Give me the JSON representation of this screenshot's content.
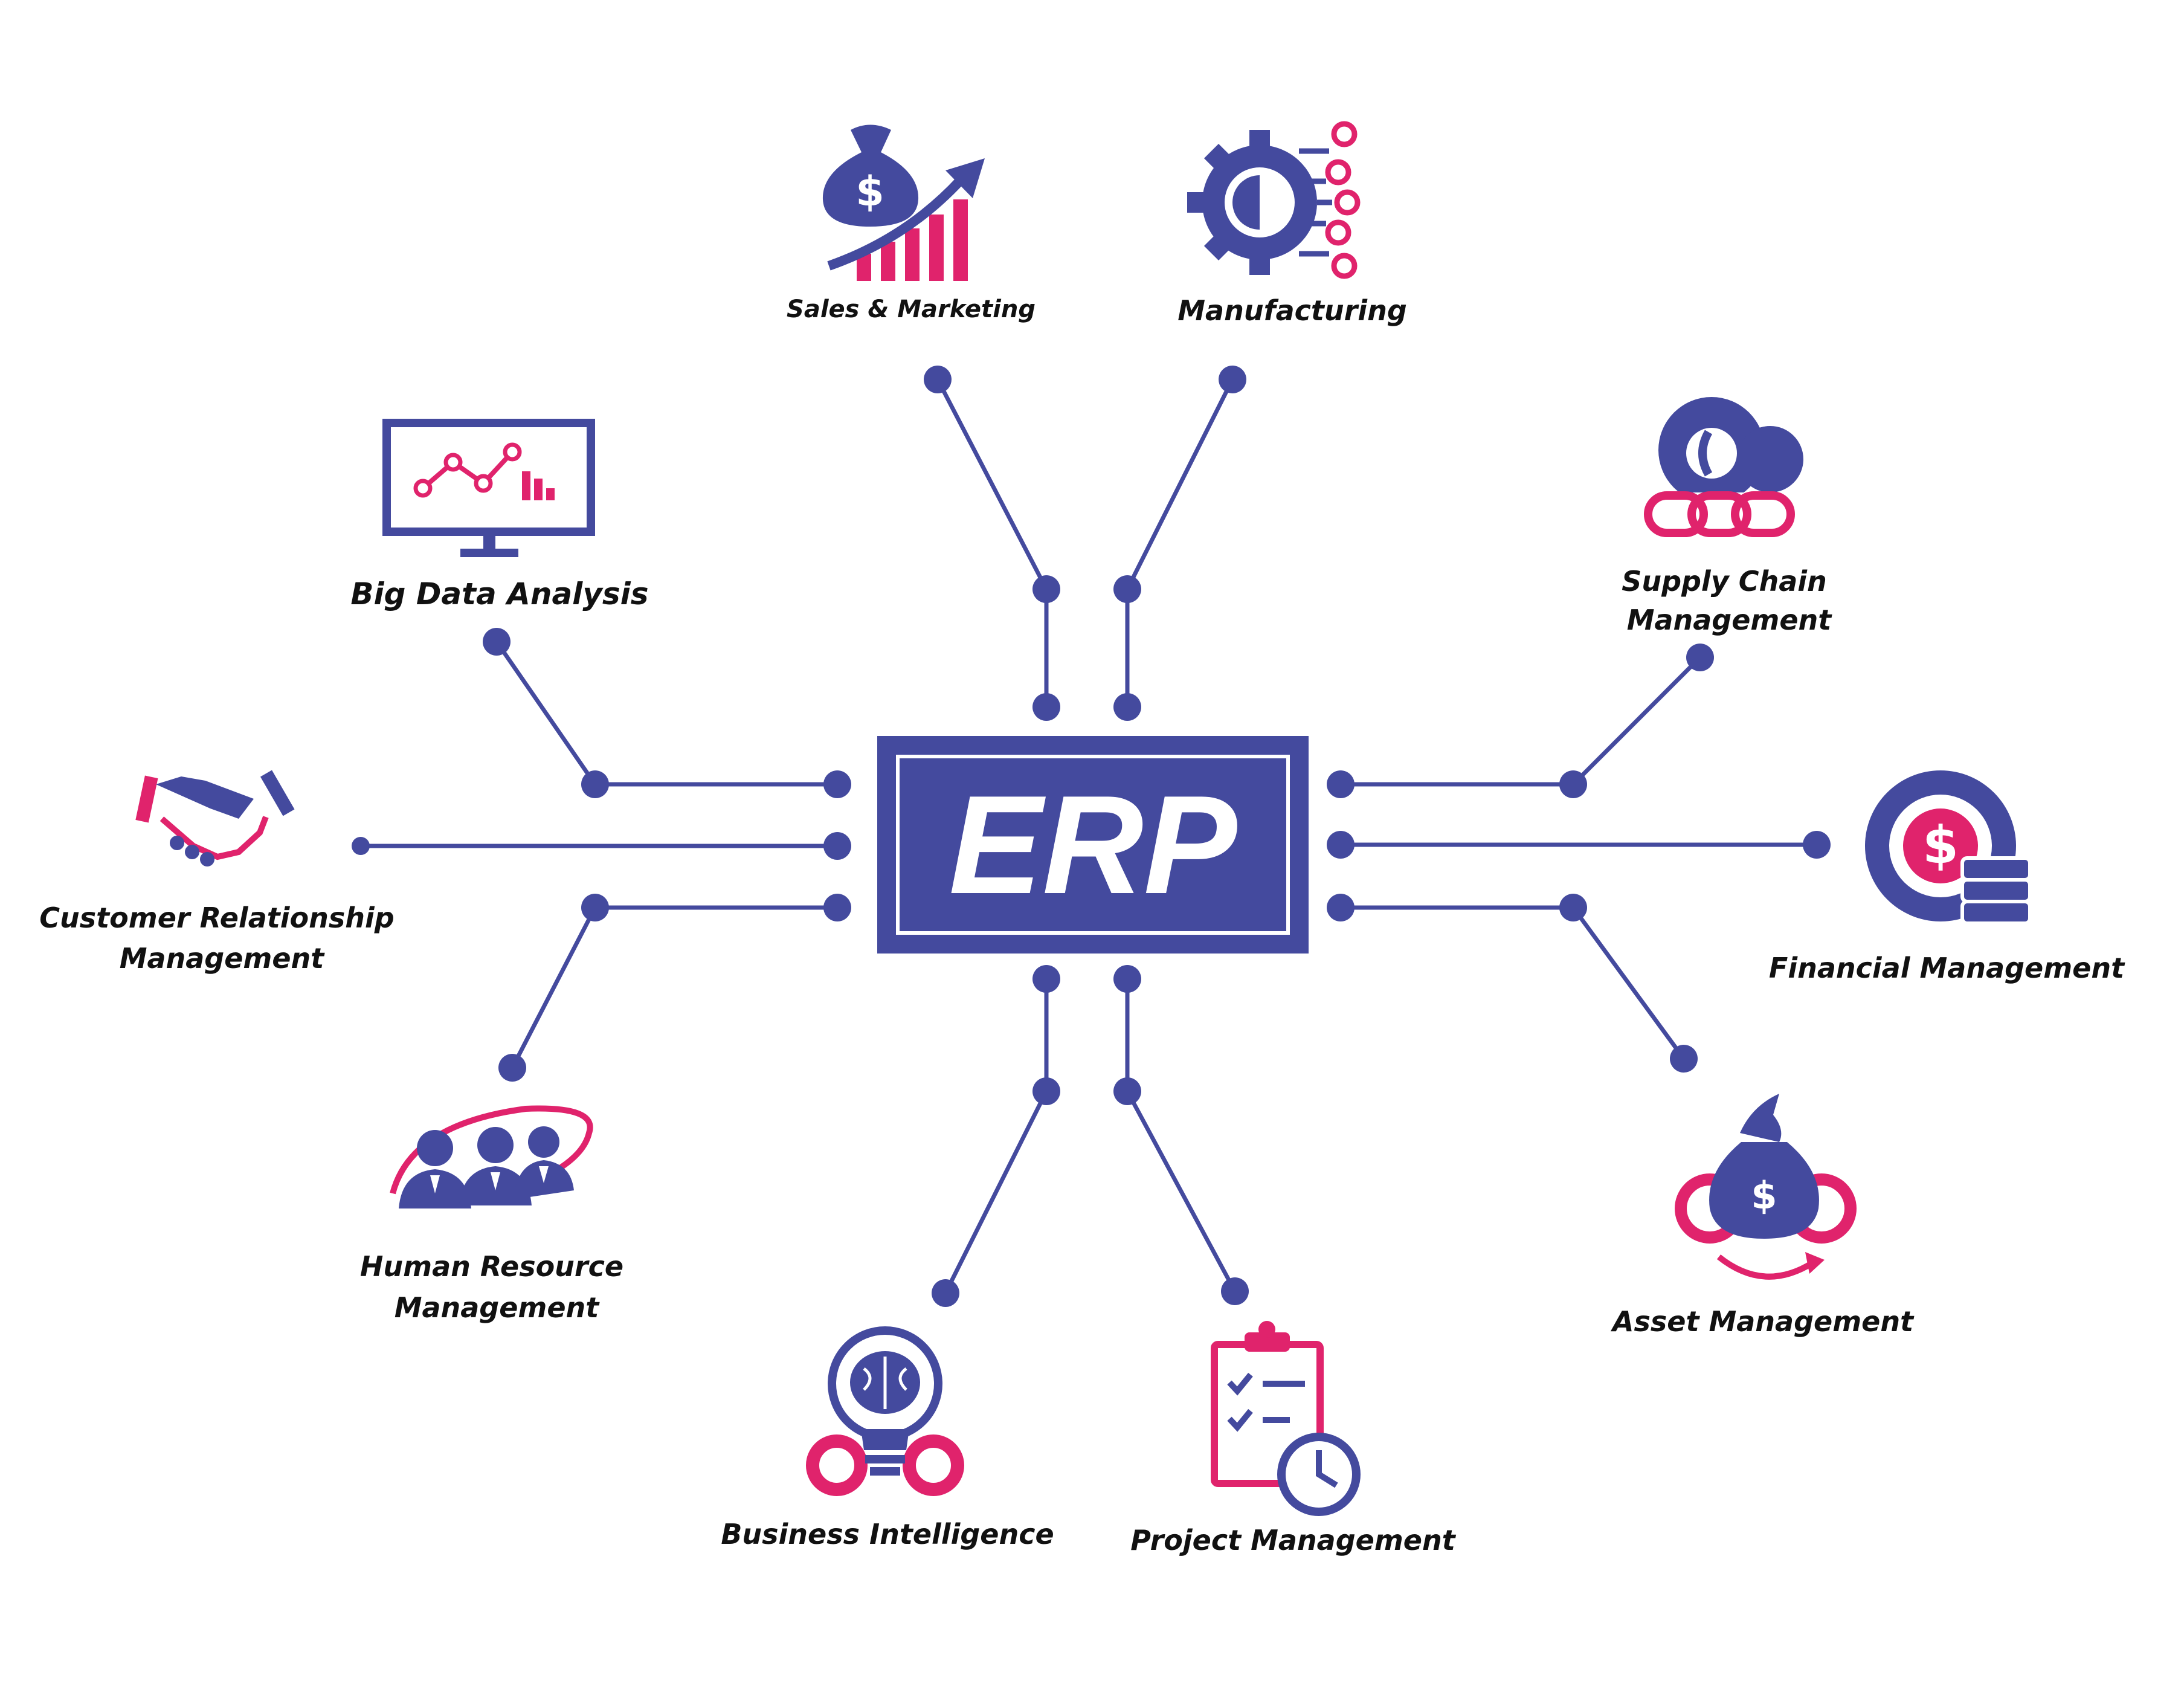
{
  "center": {
    "label": "ERP"
  },
  "colors": {
    "primary": "#444a9e",
    "accent": "#e0236c",
    "text": "#111111",
    "center_text": "#ffffff"
  },
  "modules": [
    {
      "id": "sales",
      "lines": [
        "Sales & Marketing"
      ],
      "icon": "money-bag-growth-chart-icon"
    },
    {
      "id": "manufacturing",
      "lines": [
        "Manufacturing"
      ],
      "icon": "gear-circuit-icon"
    },
    {
      "id": "supply",
      "lines": [
        "Supply Chain",
        "Management"
      ],
      "icon": "gears-chain-icon"
    },
    {
      "id": "financial",
      "lines": [
        "Financial Management"
      ],
      "icon": "dollar-gear-coins-icon"
    },
    {
      "id": "asset",
      "lines": [
        "Asset Management"
      ],
      "icon": "money-bag-gears-icon"
    },
    {
      "id": "project",
      "lines": [
        "Project Management"
      ],
      "icon": "clipboard-clock-icon"
    },
    {
      "id": "bi",
      "lines": [
        "Business Intelligence"
      ],
      "icon": "brain-bulb-gears-icon"
    },
    {
      "id": "hr",
      "lines": [
        "Human Resource",
        "Management"
      ],
      "icon": "team-people-icon"
    },
    {
      "id": "crm",
      "lines": [
        "Customer Relationship",
        "Management"
      ],
      "icon": "handshake-icon"
    },
    {
      "id": "bigdata",
      "lines": [
        "Big Data Analysis"
      ],
      "icon": "monitor-chart-icon"
    }
  ]
}
